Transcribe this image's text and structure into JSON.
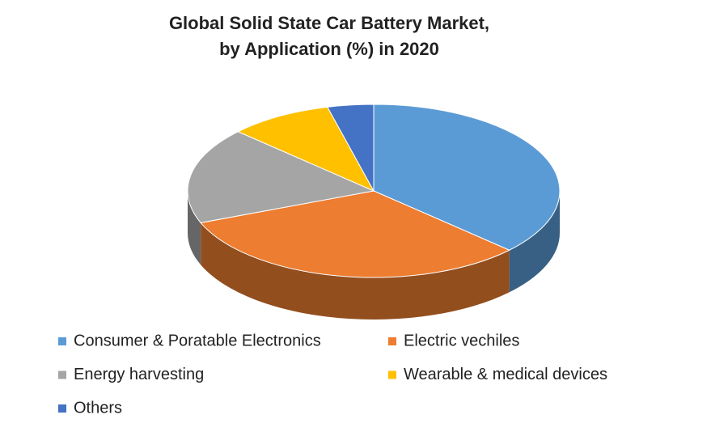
{
  "chart_data": {
    "type": "pie",
    "title": [
      "Global Solid State Car Battery Market,",
      "by Application (%) in 2020"
    ],
    "categories": [
      "Consumer & Poratable Electronics",
      "Electric vechiles",
      "Energy harvesting",
      "Wearable & medical devices",
      "Others"
    ],
    "values": [
      37,
      32,
      18,
      9,
      4
    ],
    "colors": [
      "#5b9bd5",
      "#ed7d31",
      "#a5a5a5",
      "#ffc000",
      "#4472c4"
    ]
  }
}
